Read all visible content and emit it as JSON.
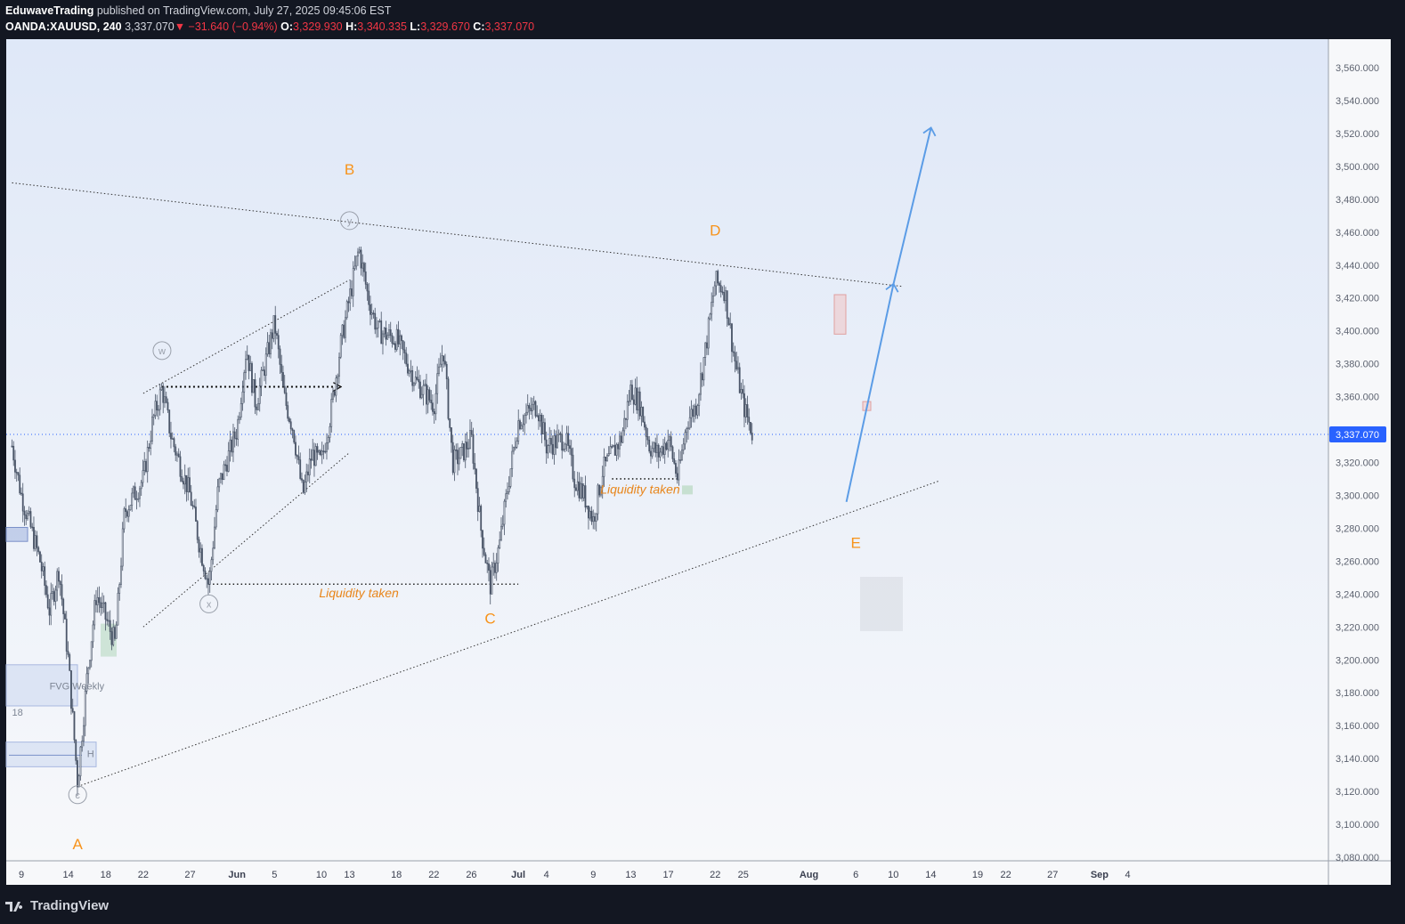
{
  "header": {
    "author": "EduwaveTrading",
    "published_text": "published on TradingView.com, July 27, 2025 09:45:06 EST",
    "symbol": "OANDA:XAUUSD, 240",
    "last": "3,337.070",
    "change": "−31.640 (−0.94%)",
    "open_label": "O:",
    "open": "3,329.930",
    "high_label": "H:",
    "high": "3,340.335",
    "low_label": "L:",
    "low": "3,329.670",
    "close_label": "C:",
    "close": "3,337.070"
  },
  "footer": {
    "brand": "TradingView",
    "logo_icon": "tradingview-logo-icon"
  },
  "colors": {
    "background_top": "#dfe8f8",
    "background_bottom": "#f7f8fa",
    "candle": "#4a5568",
    "wave_label": "#f7931a",
    "projection": "#5b9ce6",
    "price_badge": "#2962ff",
    "frame": "#131722"
  },
  "chart_data": {
    "type": "candlestick",
    "title": "",
    "ylim": [
      3080,
      3570
    ],
    "y_ticks": [
      "3,080.000",
      "3,100.000",
      "3,120.000",
      "3,140.000",
      "3,160.000",
      "3,180.000",
      "3,200.000",
      "3,220.000",
      "3,240.000",
      "3,260.000",
      "3,280.000",
      "3,300.000",
      "3,320.000",
      "3,340.000",
      "3,360.000",
      "3,380.000",
      "3,400.000",
      "3,420.000",
      "3,440.000",
      "3,460.000",
      "3,480.000",
      "3,500.000",
      "3,520.000",
      "3,540.000",
      "3,560.000"
    ],
    "y_tick_values": [
      3080,
      3100,
      3120,
      3140,
      3160,
      3180,
      3200,
      3220,
      3240,
      3260,
      3280,
      3300,
      3320,
      3340,
      3360,
      3380,
      3400,
      3420,
      3440,
      3460,
      3480,
      3500,
      3520,
      3540,
      3560
    ],
    "x_ticks": [
      {
        "label": "9",
        "date": "2025-05-09"
      },
      {
        "label": "14",
        "date": "2025-05-14"
      },
      {
        "label": "18",
        "date": "2025-05-18"
      },
      {
        "label": "22",
        "date": "2025-05-22"
      },
      {
        "label": "27",
        "date": "2025-05-27"
      },
      {
        "label": "Jun",
        "date": "2025-06-01"
      },
      {
        "label": "5",
        "date": "2025-06-05"
      },
      {
        "label": "10",
        "date": "2025-06-10"
      },
      {
        "label": "13",
        "date": "2025-06-13"
      },
      {
        "label": "18",
        "date": "2025-06-18"
      },
      {
        "label": "22",
        "date": "2025-06-22"
      },
      {
        "label": "26",
        "date": "2025-06-26"
      },
      {
        "label": "Jul",
        "date": "2025-07-01"
      },
      {
        "label": "4",
        "date": "2025-07-04"
      },
      {
        "label": "9",
        "date": "2025-07-09"
      },
      {
        "label": "13",
        "date": "2025-07-13"
      },
      {
        "label": "17",
        "date": "2025-07-17"
      },
      {
        "label": "22",
        "date": "2025-07-22"
      },
      {
        "label": "25",
        "date": "2025-07-25"
      },
      {
        "label": "Aug",
        "date": "2025-08-01"
      },
      {
        "label": "6",
        "date": "2025-08-06"
      },
      {
        "label": "10",
        "date": "2025-08-10"
      },
      {
        "label": "14",
        "date": "2025-08-14"
      },
      {
        "label": "19",
        "date": "2025-08-19"
      },
      {
        "label": "22",
        "date": "2025-08-22"
      },
      {
        "label": "27",
        "date": "2025-08-27"
      },
      {
        "label": "Sep",
        "date": "2025-09-01"
      },
      {
        "label": "4",
        "date": "2025-09-04"
      }
    ],
    "last_price": 3337.07,
    "last_price_label": "3,337.070",
    "price_path": [
      [
        "2025-05-08",
        3330
      ],
      [
        "2025-05-09",
        3300
      ],
      [
        "2025-05-11",
        3260
      ],
      [
        "2025-05-12",
        3230
      ],
      [
        "2025-05-13",
        3255
      ],
      [
        "2025-05-14",
        3200
      ],
      [
        "2025-05-15",
        3125
      ],
      [
        "2025-05-16",
        3190
      ],
      [
        "2025-05-17",
        3240
      ],
      [
        "2025-05-19",
        3210
      ],
      [
        "2025-05-20",
        3290
      ],
      [
        "2025-05-21",
        3300
      ],
      [
        "2025-05-22",
        3310
      ],
      [
        "2025-05-23",
        3345
      ],
      [
        "2025-05-24",
        3365
      ],
      [
        "2025-05-25",
        3335
      ],
      [
        "2025-05-27",
        3300
      ],
      [
        "2025-05-28",
        3270
      ],
      [
        "2025-05-29",
        3245
      ],
      [
        "2025-05-30",
        3305
      ],
      [
        "2025-06-01",
        3340
      ],
      [
        "2025-06-02",
        3390
      ],
      [
        "2025-06-03",
        3355
      ],
      [
        "2025-06-05",
        3405
      ],
      [
        "2025-06-06",
        3360
      ],
      [
        "2025-06-07",
        3340
      ],
      [
        "2025-06-08",
        3300
      ],
      [
        "2025-06-09",
        3325
      ],
      [
        "2025-06-10",
        3320
      ],
      [
        "2025-06-11",
        3350
      ],
      [
        "2025-06-12",
        3390
      ],
      [
        "2025-06-13",
        3420
      ],
      [
        "2025-06-14",
        3450
      ],
      [
        "2025-06-15",
        3420
      ],
      [
        "2025-06-16",
        3400
      ],
      [
        "2025-06-18",
        3395
      ],
      [
        "2025-06-20",
        3370
      ],
      [
        "2025-06-22",
        3355
      ],
      [
        "2025-06-23",
        3390
      ],
      [
        "2025-06-24",
        3320
      ],
      [
        "2025-06-25",
        3325
      ],
      [
        "2025-06-26",
        3335
      ],
      [
        "2025-06-27",
        3280
      ],
      [
        "2025-06-28",
        3245
      ],
      [
        "2025-06-29",
        3270
      ],
      [
        "2025-06-30",
        3310
      ],
      [
        "2025-07-01",
        3345
      ],
      [
        "2025-07-02",
        3350
      ],
      [
        "2025-07-03",
        3355
      ],
      [
        "2025-07-04",
        3330
      ],
      [
        "2025-07-06",
        3335
      ],
      [
        "2025-07-07",
        3310
      ],
      [
        "2025-07-08",
        3300
      ],
      [
        "2025-07-09",
        3285
      ],
      [
        "2025-07-10",
        3315
      ],
      [
        "2025-07-12",
        3335
      ],
      [
        "2025-07-13",
        3365
      ],
      [
        "2025-07-14",
        3355
      ],
      [
        "2025-07-15",
        3330
      ],
      [
        "2025-07-16",
        3325
      ],
      [
        "2025-07-17",
        3335
      ],
      [
        "2025-07-18",
        3310
      ],
      [
        "2025-07-19",
        3345
      ],
      [
        "2025-07-20",
        3355
      ],
      [
        "2025-07-21",
        3390
      ],
      [
        "2025-07-22",
        3430
      ],
      [
        "2025-07-23",
        3425
      ],
      [
        "2025-07-24",
        3385
      ],
      [
        "2025-07-25",
        3355
      ],
      [
        "2025-07-26",
        3337.07
      ]
    ],
    "annotations": {
      "wave_labels": [
        {
          "text": "A",
          "date": "2025-05-15",
          "price": 3085
        },
        {
          "text": "B",
          "date": "2025-06-13",
          "price": 3495
        },
        {
          "text": "C",
          "date": "2025-06-28",
          "price": 3222
        },
        {
          "text": "D",
          "date": "2025-07-22",
          "price": 3458
        },
        {
          "text": "E",
          "date": "2025-08-06",
          "price": 3268
        }
      ],
      "circled_labels": [
        {
          "text": "W",
          "date": "2025-05-24",
          "price": 3388
        },
        {
          "text": "X",
          "date": "2025-05-29",
          "price": 3234
        },
        {
          "text": "Y",
          "date": "2025-06-13",
          "price": 3467
        },
        {
          "text": "C",
          "date": "2025-05-15",
          "price": 3118
        }
      ],
      "text_labels": [
        {
          "text": "Liquidity taken",
          "date": "2025-06-14",
          "price": 3238
        },
        {
          "text": "Liquidity taken",
          "date": "2025-07-14",
          "price": 3301
        },
        {
          "text": "FVG Weekly",
          "date": "2025-05-12",
          "price": 3182
        },
        {
          "text": "18",
          "date": "2025-05-08",
          "price": 3166
        },
        {
          "text": "H",
          "date": "2025-05-16",
          "price": 3141
        }
      ],
      "upper_trendline": [
        [
          "2025-05-08",
          3490
        ],
        [
          "2025-08-11",
          3427
        ]
      ],
      "lower_trendline": [
        [
          "2025-05-15",
          3123
        ],
        [
          "2025-08-15",
          3309
        ]
      ],
      "wxy_upper": [
        [
          "2025-05-22",
          3362
        ],
        [
          "2025-06-13",
          3431
        ]
      ],
      "wxy_lower": [
        [
          "2025-05-22",
          3220
        ],
        [
          "2025-06-13",
          3326
        ]
      ],
      "liquidity_lines": [
        {
          "from": [
            "2025-05-29",
            3246
          ],
          "to": [
            "2025-07-01",
            3246
          ]
        },
        {
          "from": [
            "2025-07-11",
            3310
          ],
          "to": [
            "2025-07-18",
            3310
          ]
        }
      ],
      "arrow_right": {
        "from": [
          "2025-05-24",
          3366
        ],
        "to": [
          "2025-06-12",
          3366
        ]
      },
      "projection": [
        [
          "2025-08-05",
          3296
        ],
        [
          "2025-08-10",
          3428
        ],
        [
          "2025-08-10",
          3428
        ],
        [
          "2025-08-14",
          3523
        ]
      ]
    }
  }
}
